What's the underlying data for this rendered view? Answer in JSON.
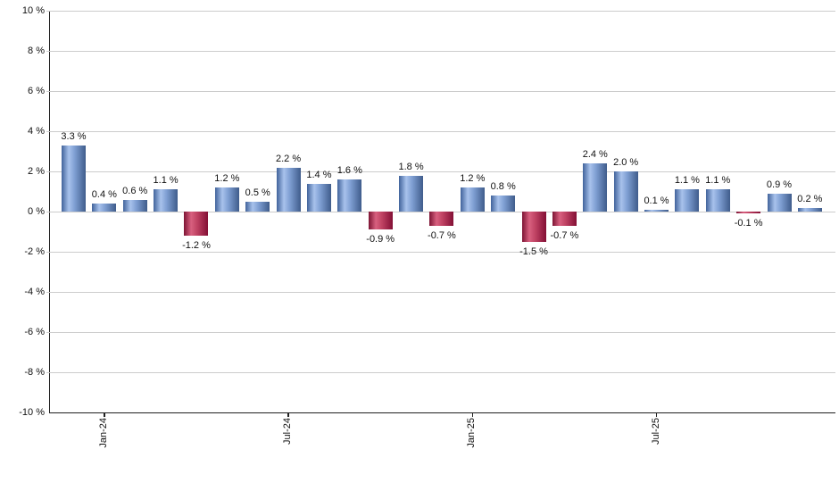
{
  "chart_data": {
    "type": "bar",
    "title": "",
    "xlabel": "",
    "ylabel": "",
    "ylim": [
      -10,
      10
    ],
    "y_tick_step": 2,
    "y_tick_labels": [
      "10 %",
      "8 %",
      "6 %",
      "4 %",
      "2 %",
      "0 %",
      "-2 %",
      "-4 %",
      "-6 %",
      "-8 %",
      "-10 %"
    ],
    "x_ticks": [
      {
        "label": "Jan-24",
        "bar_index": 1
      },
      {
        "label": "Jul-24",
        "bar_index": 7
      },
      {
        "label": "Jan-25",
        "bar_index": 13
      },
      {
        "label": "Jul-25",
        "bar_index": 19
      }
    ],
    "values": [
      3.3,
      0.4,
      0.6,
      1.1,
      -1.2,
      1.2,
      0.5,
      2.2,
      1.4,
      1.6,
      -0.9,
      1.8,
      -0.7,
      1.2,
      0.8,
      -1.5,
      -0.7,
      2.4,
      2.0,
      0.1,
      1.1,
      1.1,
      -0.1,
      0.9,
      0.2
    ],
    "value_labels": [
      "3.3 %",
      "0.4 %",
      "0.6 %",
      "1.1 %",
      "-1.2 %",
      "1.2 %",
      "0.5 %",
      "2.2 %",
      "1.4 %",
      "1.6 %",
      "-0.9 %",
      "1.8 %",
      "-0.7 %",
      "1.2 %",
      "0.8 %",
      "-1.5 %",
      "-0.7 %",
      "2.4 %",
      "2.0 %",
      "0.1 %",
      "1.1 %",
      "1.1 %",
      "-0.1 %",
      "0.9 %",
      "0.2 %"
    ],
    "grid": true,
    "legend": false,
    "colors": {
      "positive_bar": "#7e9ed2",
      "positive_gradient": [
        "#41639b",
        "#a8c2ec",
        "#3f5c8b"
      ],
      "negative_bar": "#bf4263",
      "negative_gradient": [
        "#7d1434",
        "#d8607f",
        "#830f35"
      ],
      "gridline": "#cccccc",
      "axis": "#1f1f1f",
      "label_text": "#111111",
      "background": "#ffffff"
    }
  }
}
